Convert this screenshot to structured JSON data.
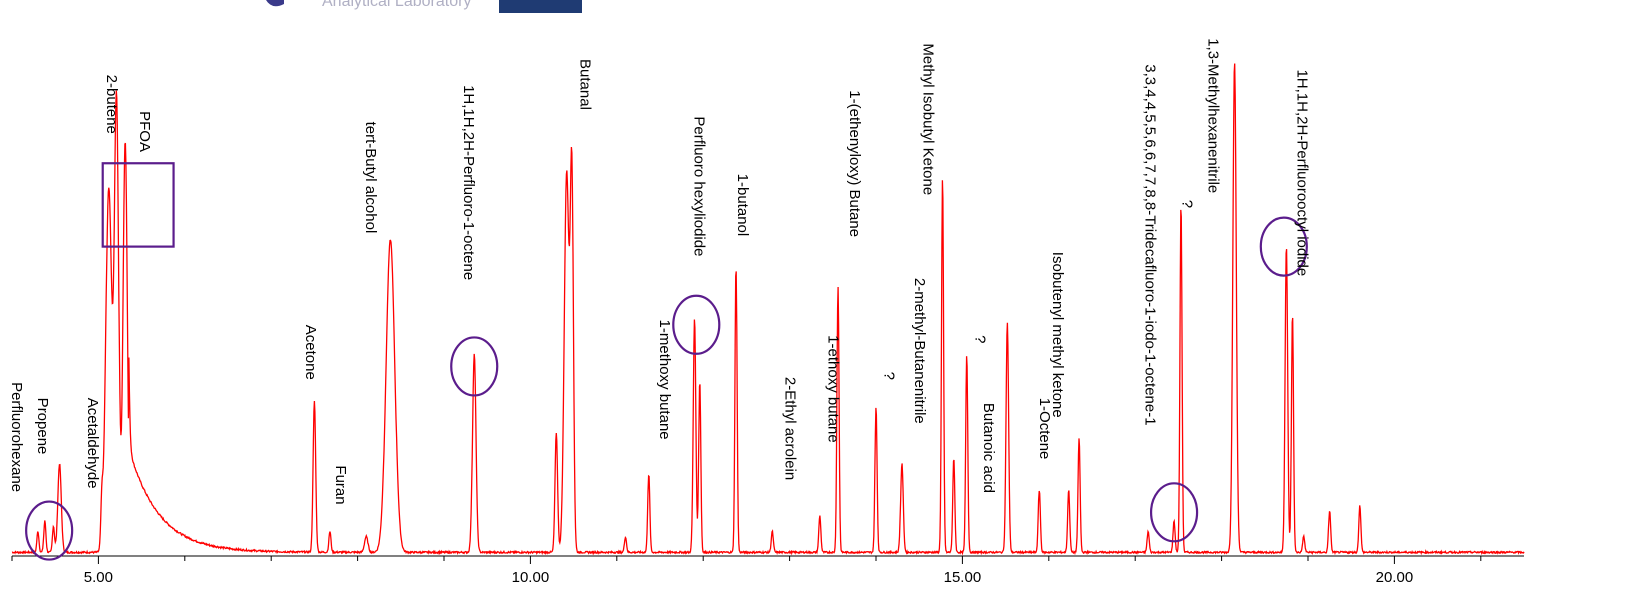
{
  "header": {
    "logo_text": "Analytical Laboratory"
  },
  "chart_data": {
    "type": "line",
    "title": "",
    "xlabel": "",
    "ylabel": "",
    "xlim": [
      4.0,
      21.5
    ],
    "ylim": [
      0,
      100
    ],
    "x_ticks": [
      5.0,
      10.0,
      15.0,
      20.0
    ],
    "x_tick_labels": [
      "5.00",
      "10.00",
      "15.00",
      "20.00"
    ],
    "grid": false,
    "series_color": "#ff0000",
    "marker_color": "#5b1d8c",
    "peaks": [
      {
        "x": 4.3,
        "h": 4,
        "w": 0.012
      },
      {
        "x": 4.38,
        "h": 6,
        "w": 0.012
      },
      {
        "x": 4.48,
        "h": 5,
        "w": 0.012
      },
      {
        "x": 4.55,
        "h": 17,
        "w": 0.02
      },
      {
        "x": 5.04,
        "h": 8,
        "w": 0.012
      },
      {
        "x": 5.12,
        "h": 70,
        "w": 0.035
      },
      {
        "x": 5.21,
        "h": 86,
        "w": 0.025
      },
      {
        "x": 5.31,
        "h": 79,
        "w": 0.025
      },
      {
        "x": 7.5,
        "h": 29,
        "w": 0.015
      },
      {
        "x": 7.68,
        "h": 4,
        "w": 0.012
      },
      {
        "x": 8.1,
        "h": 3,
        "w": 0.02
      },
      {
        "x": 8.38,
        "h": 60,
        "w": 0.05
      },
      {
        "x": 9.35,
        "h": 38,
        "w": 0.02
      },
      {
        "x": 10.3,
        "h": 23,
        "w": 0.015
      },
      {
        "x": 10.42,
        "h": 73,
        "w": 0.028
      },
      {
        "x": 10.48,
        "h": 70,
        "w": 0.018
      },
      {
        "x": 11.1,
        "h": 3,
        "w": 0.012
      },
      {
        "x": 11.37,
        "h": 15,
        "w": 0.012
      },
      {
        "x": 11.9,
        "h": 45,
        "w": 0.015
      },
      {
        "x": 11.96,
        "h": 33,
        "w": 0.012
      },
      {
        "x": 12.38,
        "h": 55,
        "w": 0.012
      },
      {
        "x": 12.8,
        "h": 4,
        "w": 0.012
      },
      {
        "x": 13.35,
        "h": 7,
        "w": 0.012
      },
      {
        "x": 13.56,
        "h": 51,
        "w": 0.012
      },
      {
        "x": 14.0,
        "h": 28,
        "w": 0.012
      },
      {
        "x": 14.3,
        "h": 17,
        "w": 0.015
      },
      {
        "x": 14.77,
        "h": 72,
        "w": 0.012
      },
      {
        "x": 14.9,
        "h": 18,
        "w": 0.012
      },
      {
        "x": 15.05,
        "h": 38,
        "w": 0.012
      },
      {
        "x": 15.52,
        "h": 44,
        "w": 0.015
      },
      {
        "x": 15.89,
        "h": 12,
        "w": 0.012
      },
      {
        "x": 16.23,
        "h": 12,
        "w": 0.012
      },
      {
        "x": 16.35,
        "h": 22,
        "w": 0.012
      },
      {
        "x": 17.15,
        "h": 4,
        "w": 0.012
      },
      {
        "x": 17.45,
        "h": 6,
        "w": 0.012
      },
      {
        "x": 17.53,
        "h": 67,
        "w": 0.012
      },
      {
        "x": 18.15,
        "h": 94,
        "w": 0.02
      },
      {
        "x": 18.75,
        "h": 59,
        "w": 0.015
      },
      {
        "x": 18.82,
        "h": 46,
        "w": 0.012
      },
      {
        "x": 18.95,
        "h": 3,
        "w": 0.012
      },
      {
        "x": 19.25,
        "h": 8,
        "w": 0.012
      },
      {
        "x": 19.6,
        "h": 9,
        "w": 0.012
      }
    ],
    "annotations": [
      {
        "text": "Perfluorohexane",
        "x": 4.0,
        "y": 33
      },
      {
        "text": "Propene",
        "x": 4.3,
        "y": 30
      },
      {
        "text": "Acetaldehyde",
        "x": 4.88,
        "y": 30
      },
      {
        "text": "2-butene",
        "x": 5.1,
        "y": 92
      },
      {
        "text": "PFOA",
        "x": 5.48,
        "y": 85
      },
      {
        "text": "Acetone",
        "x": 7.4,
        "y": 44
      },
      {
        "text": "Furan",
        "x": 7.75,
        "y": 17
      },
      {
        "text": "tert-Butyl alcohol",
        "x": 8.1,
        "y": 83
      },
      {
        "text": "1H,1H,2H-Perfluoro-1-octene",
        "x": 9.23,
        "y": 90
      },
      {
        "text": "Butanal",
        "x": 10.58,
        "y": 95
      },
      {
        "text": "1-methoxy butane",
        "x": 11.5,
        "y": 45
      },
      {
        "text": "Perfluoro hexyliodide",
        "x": 11.9,
        "y": 84
      },
      {
        "text": "1-butanol",
        "x": 12.4,
        "y": 73
      },
      {
        "text": "2-Ethyl acrolein",
        "x": 12.95,
        "y": 34
      },
      {
        "text": "1-ethoxy butane",
        "x": 13.45,
        "y": 42
      },
      {
        "text": "1-(ethenyloxy) Butane",
        "x": 13.7,
        "y": 89
      },
      {
        "text": "?",
        "x": 14.1,
        "y": 35
      },
      {
        "text": "2-methyl-Butanenitrile",
        "x": 14.45,
        "y": 53
      },
      {
        "text": "Methyl Isobutyl Ketone",
        "x": 14.55,
        "y": 98
      },
      {
        "text": "?",
        "x": 15.15,
        "y": 42
      },
      {
        "text": "Butanoic acid",
        "x": 15.25,
        "y": 29
      },
      {
        "text": "1-Octene",
        "x": 15.9,
        "y": 30
      },
      {
        "text": "Isobutenyl methyl ketone",
        "x": 16.05,
        "y": 58
      },
      {
        "text": "3,3,4,4,5,5,6,6,7,7,8,8-Tridecafluoro-1-iodo-1-octene-1",
        "x": 17.12,
        "y": 94
      },
      {
        "text": "?",
        "x": 17.55,
        "y": 68
      },
      {
        "text": "1,3-Methylhexanenitrile",
        "x": 17.85,
        "y": 99
      },
      {
        "text": "1H,1H,2H-Perfluorooctyl iodide",
        "x": 18.88,
        "y": 93
      }
    ],
    "highlight_circles": [
      {
        "x": 4.43,
        "y": 4.5
      },
      {
        "x": 9.35,
        "y": 36
      },
      {
        "x": 11.92,
        "y": 44
      },
      {
        "x": 17.45,
        "y": 8
      },
      {
        "x": 18.72,
        "y": 59
      }
    ],
    "highlight_box": {
      "x0": 5.05,
      "x1": 5.87,
      "y0": 59,
      "y1": 75
    }
  }
}
